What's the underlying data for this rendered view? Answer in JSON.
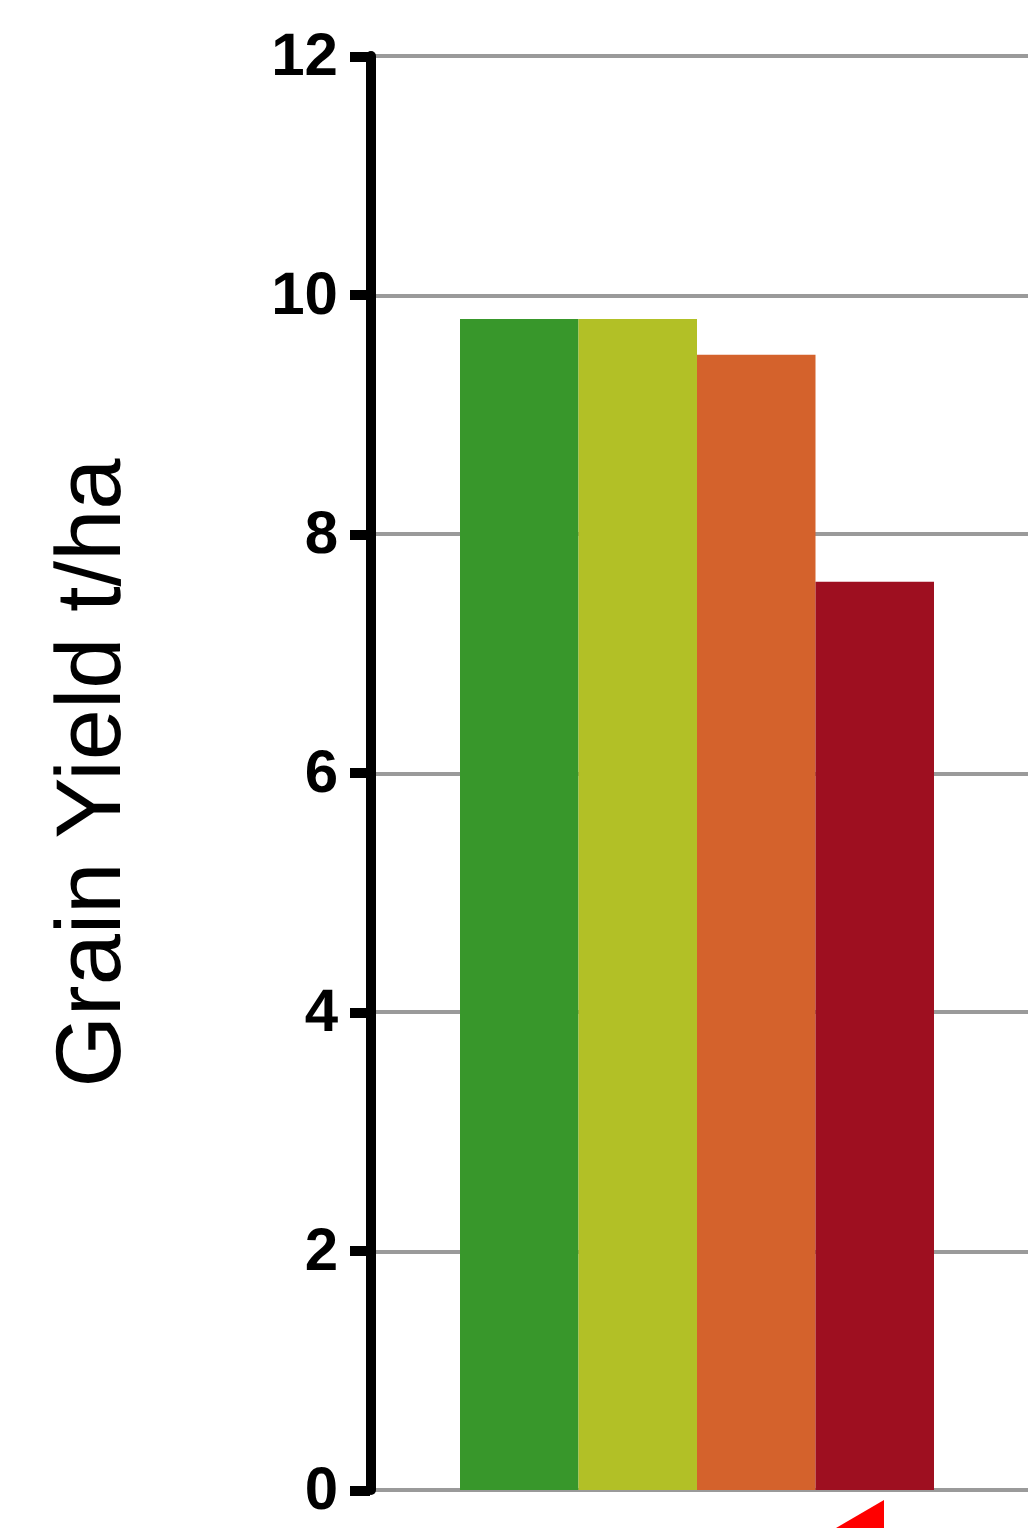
{
  "chart_data": {
    "type": "bar",
    "ylabel": "Grain Yield t/ha",
    "categories": [
      null,
      null,
      null,
      null
    ],
    "values": [
      9.8,
      9.8,
      9.5,
      7.6
    ],
    "colors": [
      "#38972b",
      "#b2c026",
      "#d4622c",
      "#9e0f20"
    ],
    "ylim": [
      0,
      12
    ],
    "yticks": [
      0,
      2,
      4,
      6,
      8,
      10,
      12
    ],
    "grid": "y"
  }
}
